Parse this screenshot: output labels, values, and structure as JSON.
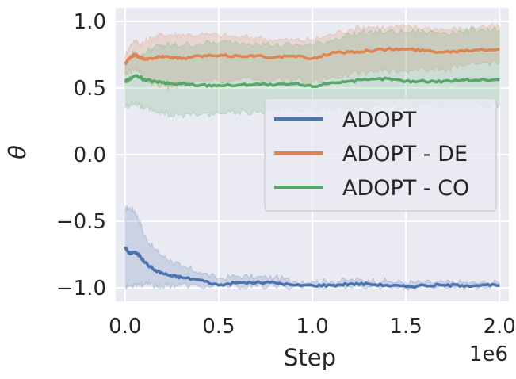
{
  "chart_data": {
    "type": "line",
    "title": "",
    "xlabel": "Step",
    "ylabel": "θ",
    "x_offset_label": "1e6",
    "xlim": [
      -0.05,
      2.05
    ],
    "ylim": [
      -1.1,
      1.1
    ],
    "grid": true,
    "background_color": "#eaeaf2",
    "grid_color": "#ffffff",
    "x_ticks": [
      0.0,
      0.5,
      1.0,
      1.5,
      2.0
    ],
    "x_tick_labels": [
      "0.0",
      "0.5",
      "1.0",
      "1.5",
      "2.0"
    ],
    "y_ticks": [
      -1.0,
      -0.5,
      0.0,
      0.5,
      1.0
    ],
    "y_tick_labels": [
      "−1.0",
      "−0.5",
      "0.0",
      "0.5",
      "1.0"
    ],
    "legend_position": "center-right",
    "x": [
      0.0,
      0.02,
      0.05,
      0.08,
      0.1,
      0.15,
      0.2,
      0.25,
      0.3,
      0.4,
      0.5,
      0.6,
      0.7,
      0.8,
      0.9,
      1.0,
      1.1,
      1.2,
      1.3,
      1.4,
      1.5,
      1.6,
      1.7,
      1.8,
      1.9,
      2.0
    ],
    "series": [
      {
        "name": "ADOPT",
        "color": "#4c72b0",
        "values": [
          -0.69,
          -0.74,
          -0.73,
          -0.76,
          -0.8,
          -0.86,
          -0.89,
          -0.91,
          -0.92,
          -0.94,
          -0.98,
          -0.96,
          -0.96,
          -0.96,
          -0.98,
          -0.98,
          -0.98,
          -0.97,
          -0.97,
          -0.98,
          -0.99,
          -0.98,
          -0.98,
          -0.98,
          -0.98,
          -0.98
        ],
        "lower": [
          -0.99,
          -0.99,
          -0.97,
          -0.97,
          -0.98,
          -0.98,
          -0.99,
          -0.98,
          -0.98,
          -0.99,
          -0.99,
          -0.99,
          -0.99,
          -0.99,
          -0.99,
          -0.99,
          -0.99,
          -0.99,
          -0.99,
          -0.99,
          -1.0,
          -0.99,
          -0.99,
          -0.99,
          -0.99,
          -0.99
        ],
        "upper": [
          -0.41,
          -0.4,
          -0.42,
          -0.5,
          -0.6,
          -0.7,
          -0.76,
          -0.8,
          -0.84,
          -0.88,
          -0.93,
          -0.91,
          -0.92,
          -0.92,
          -0.95,
          -0.95,
          -0.95,
          -0.94,
          -0.94,
          -0.95,
          -0.96,
          -0.96,
          -0.96,
          -0.96,
          -0.96,
          -0.96
        ]
      },
      {
        "name": "ADOPT - DE",
        "color": "#dd8452",
        "values": [
          0.68,
          0.72,
          0.75,
          0.73,
          0.72,
          0.72,
          0.74,
          0.73,
          0.72,
          0.74,
          0.74,
          0.74,
          0.74,
          0.73,
          0.74,
          0.72,
          0.76,
          0.77,
          0.78,
          0.79,
          0.79,
          0.78,
          0.77,
          0.78,
          0.79,
          0.79
        ],
        "lower": [
          0.6,
          0.62,
          0.64,
          0.63,
          0.55,
          0.53,
          0.52,
          0.5,
          0.52,
          0.54,
          0.55,
          0.56,
          0.56,
          0.56,
          0.56,
          0.54,
          0.58,
          0.6,
          0.62,
          0.63,
          0.63,
          0.64,
          0.64,
          0.66,
          0.68,
          0.68
        ],
        "upper": [
          0.74,
          0.8,
          0.86,
          0.83,
          0.84,
          0.88,
          0.9,
          0.9,
          0.9,
          0.9,
          0.9,
          0.88,
          0.88,
          0.86,
          0.86,
          0.86,
          0.9,
          0.94,
          0.96,
          0.95,
          0.96,
          0.95,
          0.94,
          0.94,
          0.96,
          0.96
        ]
      },
      {
        "name": "ADOPT - CO",
        "color": "#55a868",
        "values": [
          0.55,
          0.56,
          0.59,
          0.58,
          0.56,
          0.55,
          0.54,
          0.53,
          0.53,
          0.52,
          0.52,
          0.52,
          0.53,
          0.52,
          0.53,
          0.51,
          0.54,
          0.55,
          0.56,
          0.57,
          0.55,
          0.55,
          0.55,
          0.56,
          0.56,
          0.56
        ],
        "lower": [
          0.35,
          0.37,
          0.38,
          0.36,
          0.34,
          0.33,
          0.31,
          0.29,
          0.3,
          0.3,
          0.31,
          0.32,
          0.32,
          0.33,
          0.33,
          0.33,
          0.34,
          0.34,
          0.35,
          0.36,
          0.35,
          0.36,
          0.36,
          0.36,
          0.37,
          0.37
        ],
        "upper": [
          0.66,
          0.72,
          0.77,
          0.73,
          0.76,
          0.8,
          0.82,
          0.82,
          0.82,
          0.83,
          0.84,
          0.84,
          0.84,
          0.82,
          0.82,
          0.82,
          0.86,
          0.9,
          0.92,
          0.92,
          0.92,
          0.92,
          0.92,
          0.92,
          0.94,
          0.94
        ]
      }
    ]
  }
}
